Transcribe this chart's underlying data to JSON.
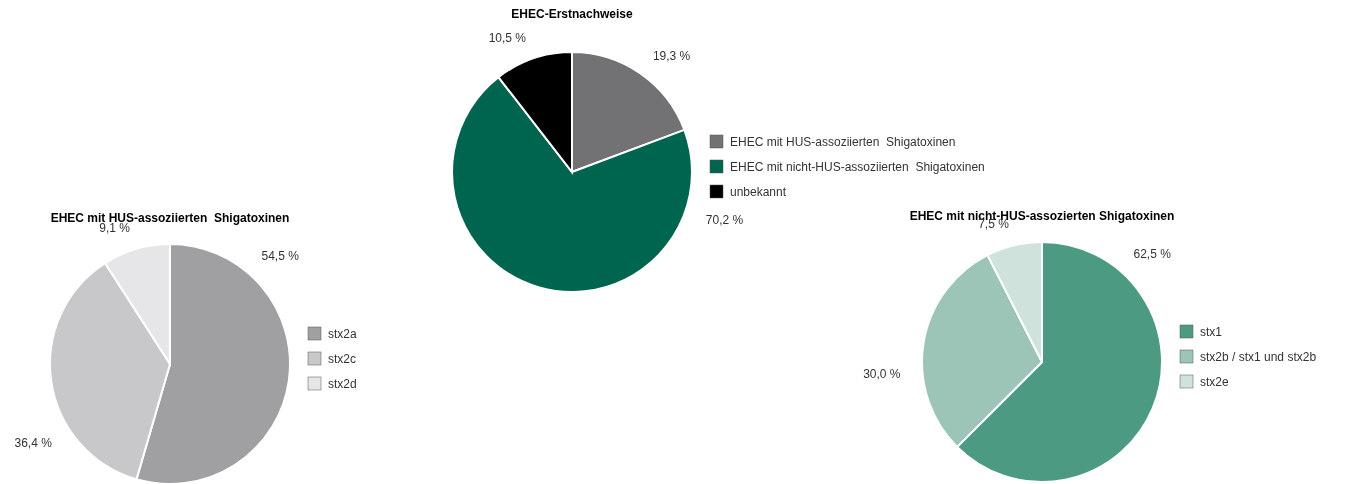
{
  "chart_data": [
    {
      "type": "pie",
      "title": "EHEC-Erstnachweise",
      "categories": [
        "EHEC mit HUS-assoziierten  Shigatoxinen",
        "EHEC mit nicht-HUS-assoziierten  Shigatoxinen",
        "unbekannt"
      ],
      "values": [
        19.3,
        70.2,
        10.5
      ],
      "value_labels": [
        "19,3 %",
        "70,2 %",
        "10,5 %"
      ],
      "colors": [
        "#727174",
        "#00654f",
        "#000000"
      ],
      "legend": "right"
    },
    {
      "type": "pie",
      "title": "EHEC mit HUS-assoziierten  Shigatoxinen",
      "categories": [
        "stx2a",
        "stx2c",
        "stx2d"
      ],
      "values": [
        54.5,
        36.4,
        9.1
      ],
      "value_labels": [
        "54,5 %",
        "36,4 %",
        "9,1 %"
      ],
      "colors": [
        "#a0a0a2",
        "#c8c8ca",
        "#e6e6e8"
      ],
      "legend": "right"
    },
    {
      "type": "pie",
      "title": "EHEC mit nicht-HUS-assozierten Shigatoxinen",
      "categories": [
        "stx1",
        "stx2b / stx1 und stx2b",
        "stx2e"
      ],
      "values": [
        62.5,
        30.0,
        7.5
      ],
      "value_labels": [
        "62,5 %",
        "30,0 %",
        "7,5 %"
      ],
      "colors": [
        "#4d9a83",
        "#9cc5b8",
        "#cfe3dc"
      ],
      "legend": "right"
    }
  ]
}
